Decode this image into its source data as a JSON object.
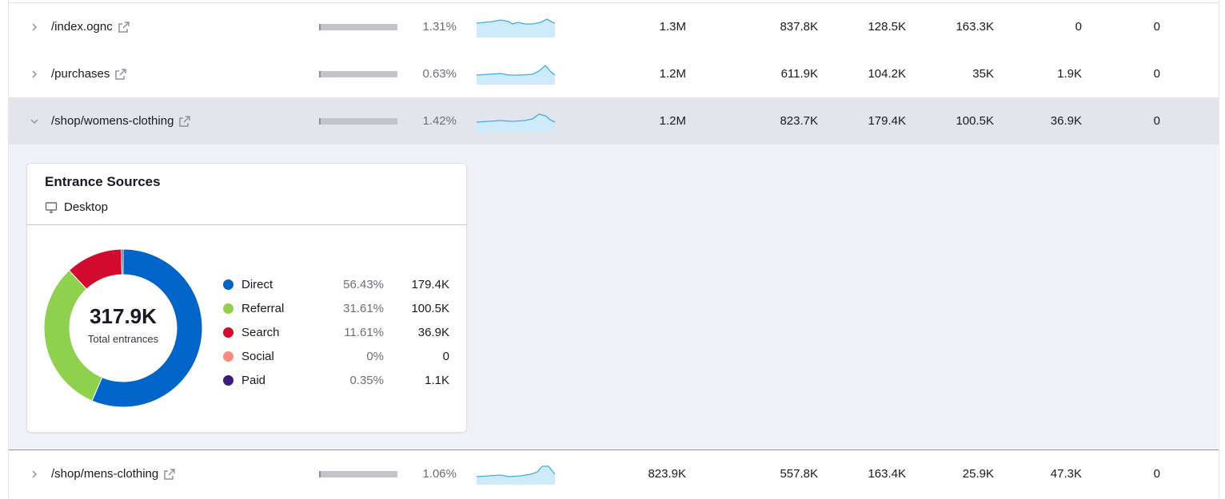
{
  "rows": [
    {
      "url": "/index.ognc",
      "pct": "1.31%",
      "c1": "1.3M",
      "c2": "837.8K",
      "c3": "128.5K",
      "c4": "163.3K",
      "c5": "0",
      "c6": "0"
    },
    {
      "url": "/purchases",
      "pct": "0.63%",
      "c1": "1.2M",
      "c2": "611.9K",
      "c3": "104.2K",
      "c4": "35K",
      "c5": "1.9K",
      "c6": "0"
    },
    {
      "url": "/shop/womens-clothing",
      "pct": "1.42%",
      "c1": "1.2M",
      "c2": "823.7K",
      "c3": "179.4K",
      "c4": "100.5K",
      "c5": "36.9K",
      "c6": "0"
    },
    {
      "url": "/shop/mens-clothing",
      "pct": "1.06%",
      "c1": "823.9K",
      "c2": "557.8K",
      "c3": "163.4K",
      "c4": "25.9K",
      "c5": "47.3K",
      "c6": "0"
    }
  ],
  "panel": {
    "title": "Entrance Sources",
    "device": "Desktop",
    "total": "317.9K",
    "total_label": "Total entrances",
    "sources": [
      {
        "name": "Direct",
        "pct": "56.43%",
        "value": "179.4K",
        "color": "#0064c8",
        "share": 56.43
      },
      {
        "name": "Referral",
        "pct": "31.61%",
        "value": "100.5K",
        "color": "#8fd14f",
        "share": 31.61
      },
      {
        "name": "Search",
        "pct": "11.61%",
        "value": "36.9K",
        "color": "#d10a2e",
        "share": 11.61
      },
      {
        "name": "Social",
        "pct": "0%",
        "value": "0",
        "color": "#ff8a80",
        "share": 0
      },
      {
        "name": "Paid",
        "pct": "0.35%",
        "value": "1.1K",
        "color": "#3b1c7a",
        "share": 0.35
      }
    ]
  },
  "colors": {
    "accent": "#3ab0e8",
    "spark_fill": "#cfeafb"
  }
}
